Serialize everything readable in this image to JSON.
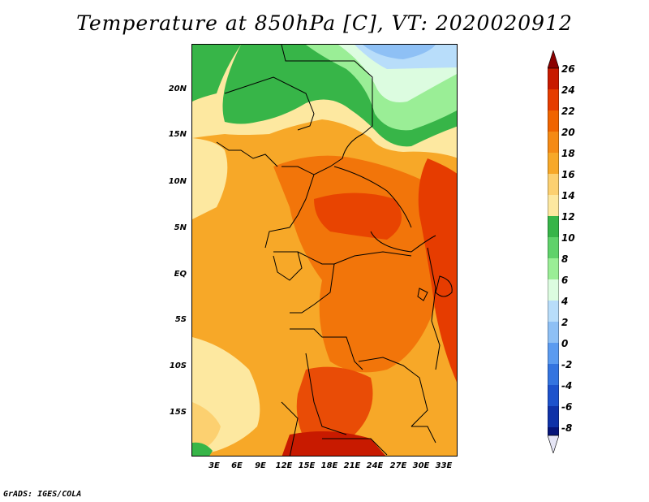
{
  "title": "Temperature at 850hPa [C], VT: 2020020912",
  "credit": "GrADS: IGES/COLA",
  "map": {
    "lat_labels": [
      "20N",
      "15N",
      "10N",
      "5N",
      "EQ",
      "5S",
      "10S",
      "15S"
    ],
    "lon_labels": [
      "3E",
      "6E",
      "9E",
      "12E",
      "15E",
      "18E",
      "21E",
      "24E",
      "27E",
      "30E",
      "33E"
    ]
  },
  "colorbar": {
    "labels": [
      "26",
      "24",
      "22",
      "20",
      "18",
      "16",
      "14",
      "12",
      "10",
      "8",
      "6",
      "4",
      "2",
      "0",
      "-2",
      "-4",
      "-6",
      "-8"
    ],
    "colors": [
      "#8b0000",
      "#c81a00",
      "#e63c00",
      "#f06400",
      "#f58a14",
      "#f7a828",
      "#fcd070",
      "#fde8a0",
      "#37b548",
      "#5fd26a",
      "#9aee96",
      "#dcfce0",
      "#b8ddfa",
      "#8ec0f5",
      "#5b9bf0",
      "#3474e0",
      "#1d52cc",
      "#0f32a8",
      "#061478",
      "#e5e5f5"
    ]
  }
}
